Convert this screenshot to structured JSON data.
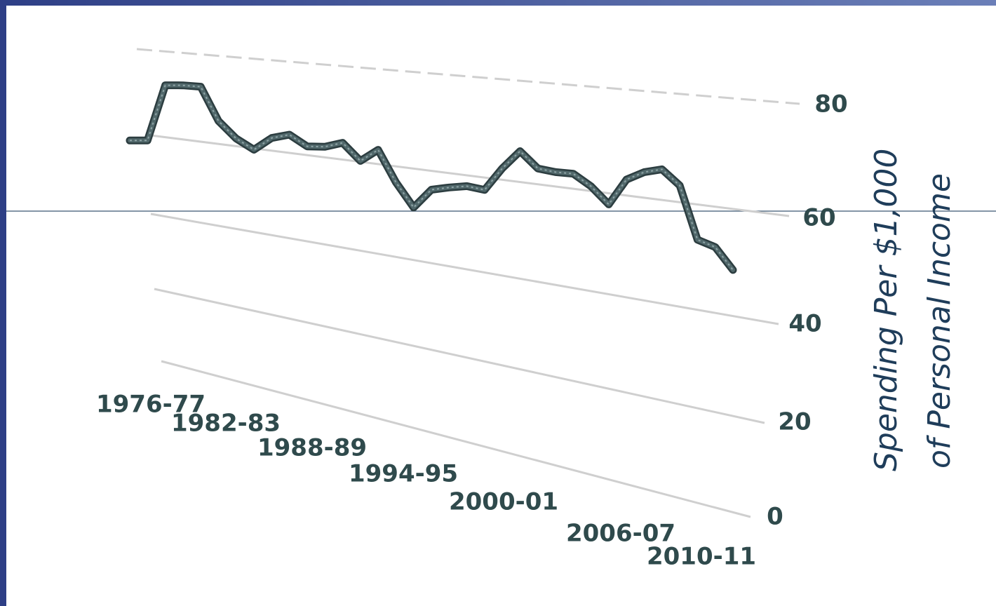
{
  "chart_data": {
    "type": "line",
    "ylabel": [
      "Spending Per $1,000",
      "of Personal Income"
    ],
    "categories": [
      "1976-77",
      null,
      null,
      null,
      null,
      null,
      "1982-83",
      null,
      null,
      null,
      null,
      null,
      "1988-89",
      null,
      null,
      null,
      null,
      null,
      "1994-95",
      null,
      null,
      null,
      null,
      null,
      "2000-01",
      null,
      null,
      null,
      null,
      null,
      "2006-07",
      null,
      null,
      null,
      "2010-11"
    ],
    "series": [
      {
        "name": "Spending",
        "color": "#51686b",
        "values": [
          58.0,
          58.6,
          72.1,
          72.5,
          72.6,
          65.2,
          61.7,
          59.7,
          62.8,
          64.0,
          61.9,
          62.3,
          63.6,
          60.2,
          63.0,
          56.5,
          51.5,
          55.9,
          56.9,
          57.7,
          57.4,
          62.3,
          66.1,
          63.1,
          62.8,
          62.9,
          60.9,
          57.8,
          63.0,
          64.8,
          65.7,
          63.1,
          53.3,
          52.4,
          48.6
        ]
      }
    ],
    "ylim": [
      0,
      80
    ],
    "yticks": [
      0,
      20,
      40,
      60,
      80
    ],
    "grid": true
  }
}
